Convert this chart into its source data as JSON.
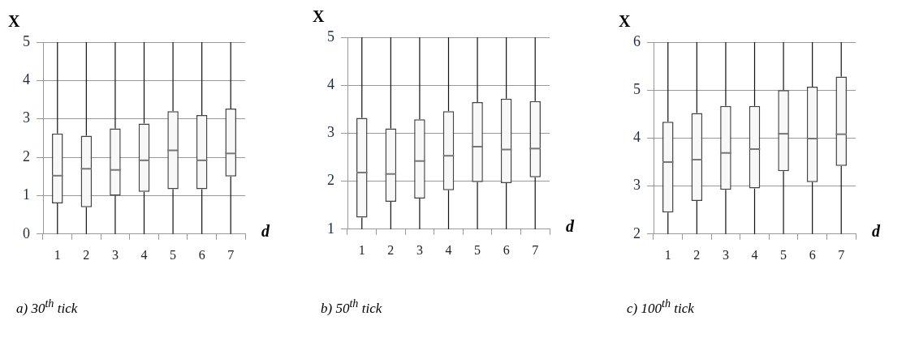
{
  "chart_data": [
    {
      "type": "box",
      "categories": [
        "1",
        "2",
        "3",
        "4",
        "5",
        "6",
        "7"
      ],
      "xlabel": "d",
      "ylabel": "X",
      "ylim": [
        0,
        5
      ],
      "yticks": [
        0,
        1,
        2,
        3,
        4,
        5
      ],
      "grid": "y",
      "annotations": [
        "a)  30$^{th}$ tick"
      ],
      "boxes": [
        {
          "low": 0,
          "q1": 0.8,
          "median": 1.52,
          "q3": 2.62,
          "high": 5
        },
        {
          "low": 0,
          "q1": 0.7,
          "median": 1.7,
          "q3": 2.56,
          "high": 5
        },
        {
          "low": 0,
          "q1": 1.0,
          "median": 1.67,
          "q3": 2.75,
          "high": 5
        },
        {
          "low": 0,
          "q1": 1.1,
          "median": 1.92,
          "q3": 2.88,
          "high": 5
        },
        {
          "low": 0,
          "q1": 1.17,
          "median": 2.18,
          "q3": 3.2,
          "high": 5
        },
        {
          "low": 0,
          "q1": 1.17,
          "median": 1.92,
          "q3": 3.1,
          "high": 5
        },
        {
          "low": 0,
          "q1": 1.5,
          "median": 2.1,
          "q3": 3.27,
          "high": 5
        }
      ]
    },
    {
      "type": "box",
      "categories": [
        "1",
        "2",
        "3",
        "4",
        "5",
        "6",
        "7"
      ],
      "xlabel": "d",
      "ylabel": "X",
      "ylim": [
        1,
        5
      ],
      "yticks": [
        1,
        2,
        3,
        4,
        5
      ],
      "grid": "y",
      "annotations": [
        "b)  50$^{th}$ tick"
      ],
      "boxes": [
        {
          "low": 1,
          "q1": 1.24,
          "median": 2.18,
          "q3": 3.32,
          "high": 5
        },
        {
          "low": 1,
          "q1": 1.57,
          "median": 2.15,
          "q3": 3.1,
          "high": 5
        },
        {
          "low": 1,
          "q1": 1.64,
          "median": 2.42,
          "q3": 3.29,
          "high": 5
        },
        {
          "low": 1,
          "q1": 1.81,
          "median": 2.53,
          "q3": 3.46,
          "high": 5
        },
        {
          "low": 1,
          "q1": 1.98,
          "median": 2.72,
          "q3": 3.65,
          "high": 5
        },
        {
          "low": 1,
          "q1": 1.96,
          "median": 2.66,
          "q3": 3.72,
          "high": 5
        },
        {
          "low": 1,
          "q1": 2.08,
          "median": 2.68,
          "q3": 3.67,
          "high": 5
        }
      ]
    },
    {
      "type": "box",
      "categories": [
        "1",
        "2",
        "3",
        "4",
        "5",
        "6",
        "7"
      ],
      "xlabel": "d",
      "ylabel": "X",
      "ylim": [
        2,
        6
      ],
      "yticks": [
        2,
        3,
        4,
        5,
        6
      ],
      "grid": "y",
      "annotations": [
        "c)  100$^{th}$ tick"
      ],
      "boxes": [
        {
          "low": 2,
          "q1": 2.45,
          "median": 3.5,
          "q3": 4.34,
          "high": 6
        },
        {
          "low": 2,
          "q1": 2.69,
          "median": 3.55,
          "q3": 4.52,
          "high": 6
        },
        {
          "low": 2,
          "q1": 2.92,
          "median": 3.69,
          "q3": 4.67,
          "high": 6
        },
        {
          "low": 2,
          "q1": 2.95,
          "median": 3.77,
          "q3": 4.67,
          "high": 6
        },
        {
          "low": 2,
          "q1": 3.31,
          "median": 4.09,
          "q3": 5.0,
          "high": 6
        },
        {
          "low": 2,
          "q1": 3.08,
          "median": 3.99,
          "q3": 5.07,
          "high": 6
        },
        {
          "low": 2,
          "q1": 3.42,
          "median": 4.08,
          "q3": 5.28,
          "high": 6
        }
      ]
    }
  ]
}
